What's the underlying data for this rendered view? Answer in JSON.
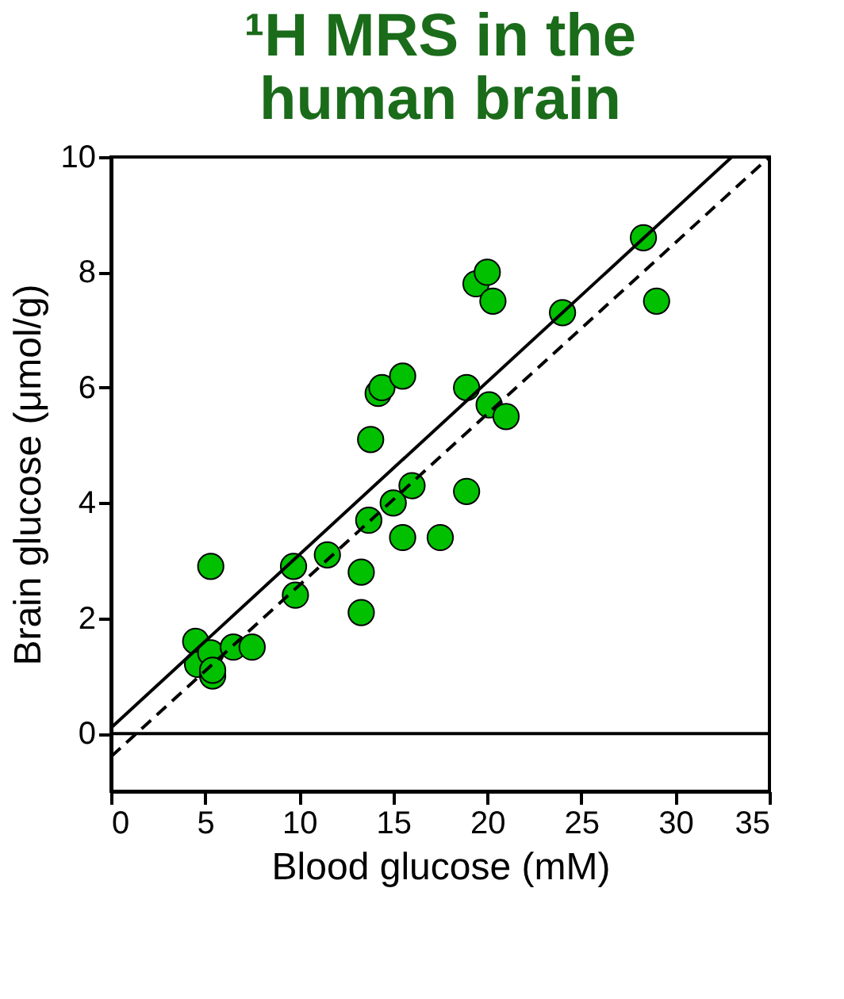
{
  "chart_data": {
    "type": "scatter",
    "title": "¹H MRS in the human brain",
    "xlabel": "Blood glucose (mM)",
    "ylabel": "Brain glucose (μmol/g)",
    "x": [
      4.5,
      4.6,
      5.3,
      5.4,
      5.4,
      5.3,
      6.5,
      7.5,
      9.7,
      9.8,
      11.5,
      13.3,
      13.3,
      13.7,
      13.8,
      14.2,
      14.4,
      15.0,
      15.5,
      15.5,
      16.0,
      17.5,
      18.9,
      18.9,
      19.4,
      20.0,
      20.1,
      20.3,
      21.0,
      24.0,
      28.3,
      29.0
    ],
    "series": [
      {
        "color": "#00c000",
        "marker": "circle",
        "values": [
          1.6,
          1.2,
          1.4,
          1.0,
          1.1,
          2.9,
          1.5,
          1.5,
          2.9,
          2.4,
          3.1,
          2.1,
          2.8,
          3.7,
          5.1,
          5.9,
          6.0,
          4.0,
          3.4,
          6.2,
          4.3,
          3.4,
          4.2,
          6.0,
          7.8,
          8.0,
          5.7,
          7.5,
          5.5,
          7.3,
          8.6,
          7.5
        ]
      },
      {
        "type": "line",
        "color": "#000000",
        "line_style": "solid",
        "x": [
          0,
          33
        ],
        "values": [
          0.1,
          10
        ]
      },
      {
        "type": "line",
        "color": "#000000",
        "line_style": "dashed",
        "x": [
          0,
          35
        ],
        "values": [
          -0.4,
          10
        ]
      }
    ],
    "xlim": [
      0,
      35
    ],
    "xticks": [
      0,
      5,
      10,
      15,
      20,
      25,
      30,
      35
    ],
    "ylim": [
      -1,
      10
    ],
    "yticks": [
      0,
      2,
      4,
      6,
      8,
      10
    ],
    "ref_lines": [
      {
        "axis": "y",
        "value": 0,
        "color": "#000000",
        "line_style": "solid"
      }
    ],
    "grid": false
  }
}
